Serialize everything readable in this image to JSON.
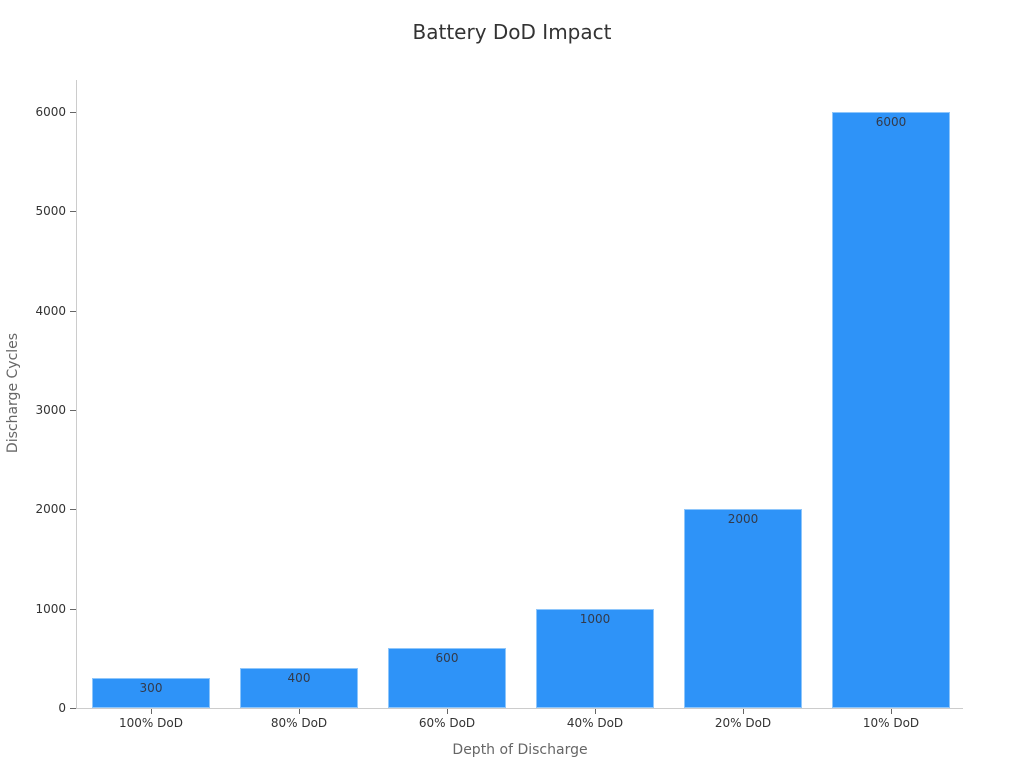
{
  "chart_data": {
    "type": "bar",
    "title": "Battery DoD Impact",
    "xlabel": "Depth of Discharge",
    "ylabel": "Discharge Cycles",
    "categories": [
      "100% DoD",
      "80% DoD",
      "60% DoD",
      "40% DoD",
      "20% DoD",
      "10% DoD"
    ],
    "values": [
      300,
      400,
      600,
      1000,
      2000,
      6000
    ],
    "data_labels": [
      "300",
      "400",
      "600",
      "1000",
      "2000",
      "6000"
    ],
    "yticks": [
      "0",
      "1000",
      "2000",
      "3000",
      "4000",
      "5000",
      "6000"
    ],
    "ylim": [
      0,
      6300
    ],
    "grid": false,
    "legend": null,
    "bar_color": "#2e93f8"
  }
}
